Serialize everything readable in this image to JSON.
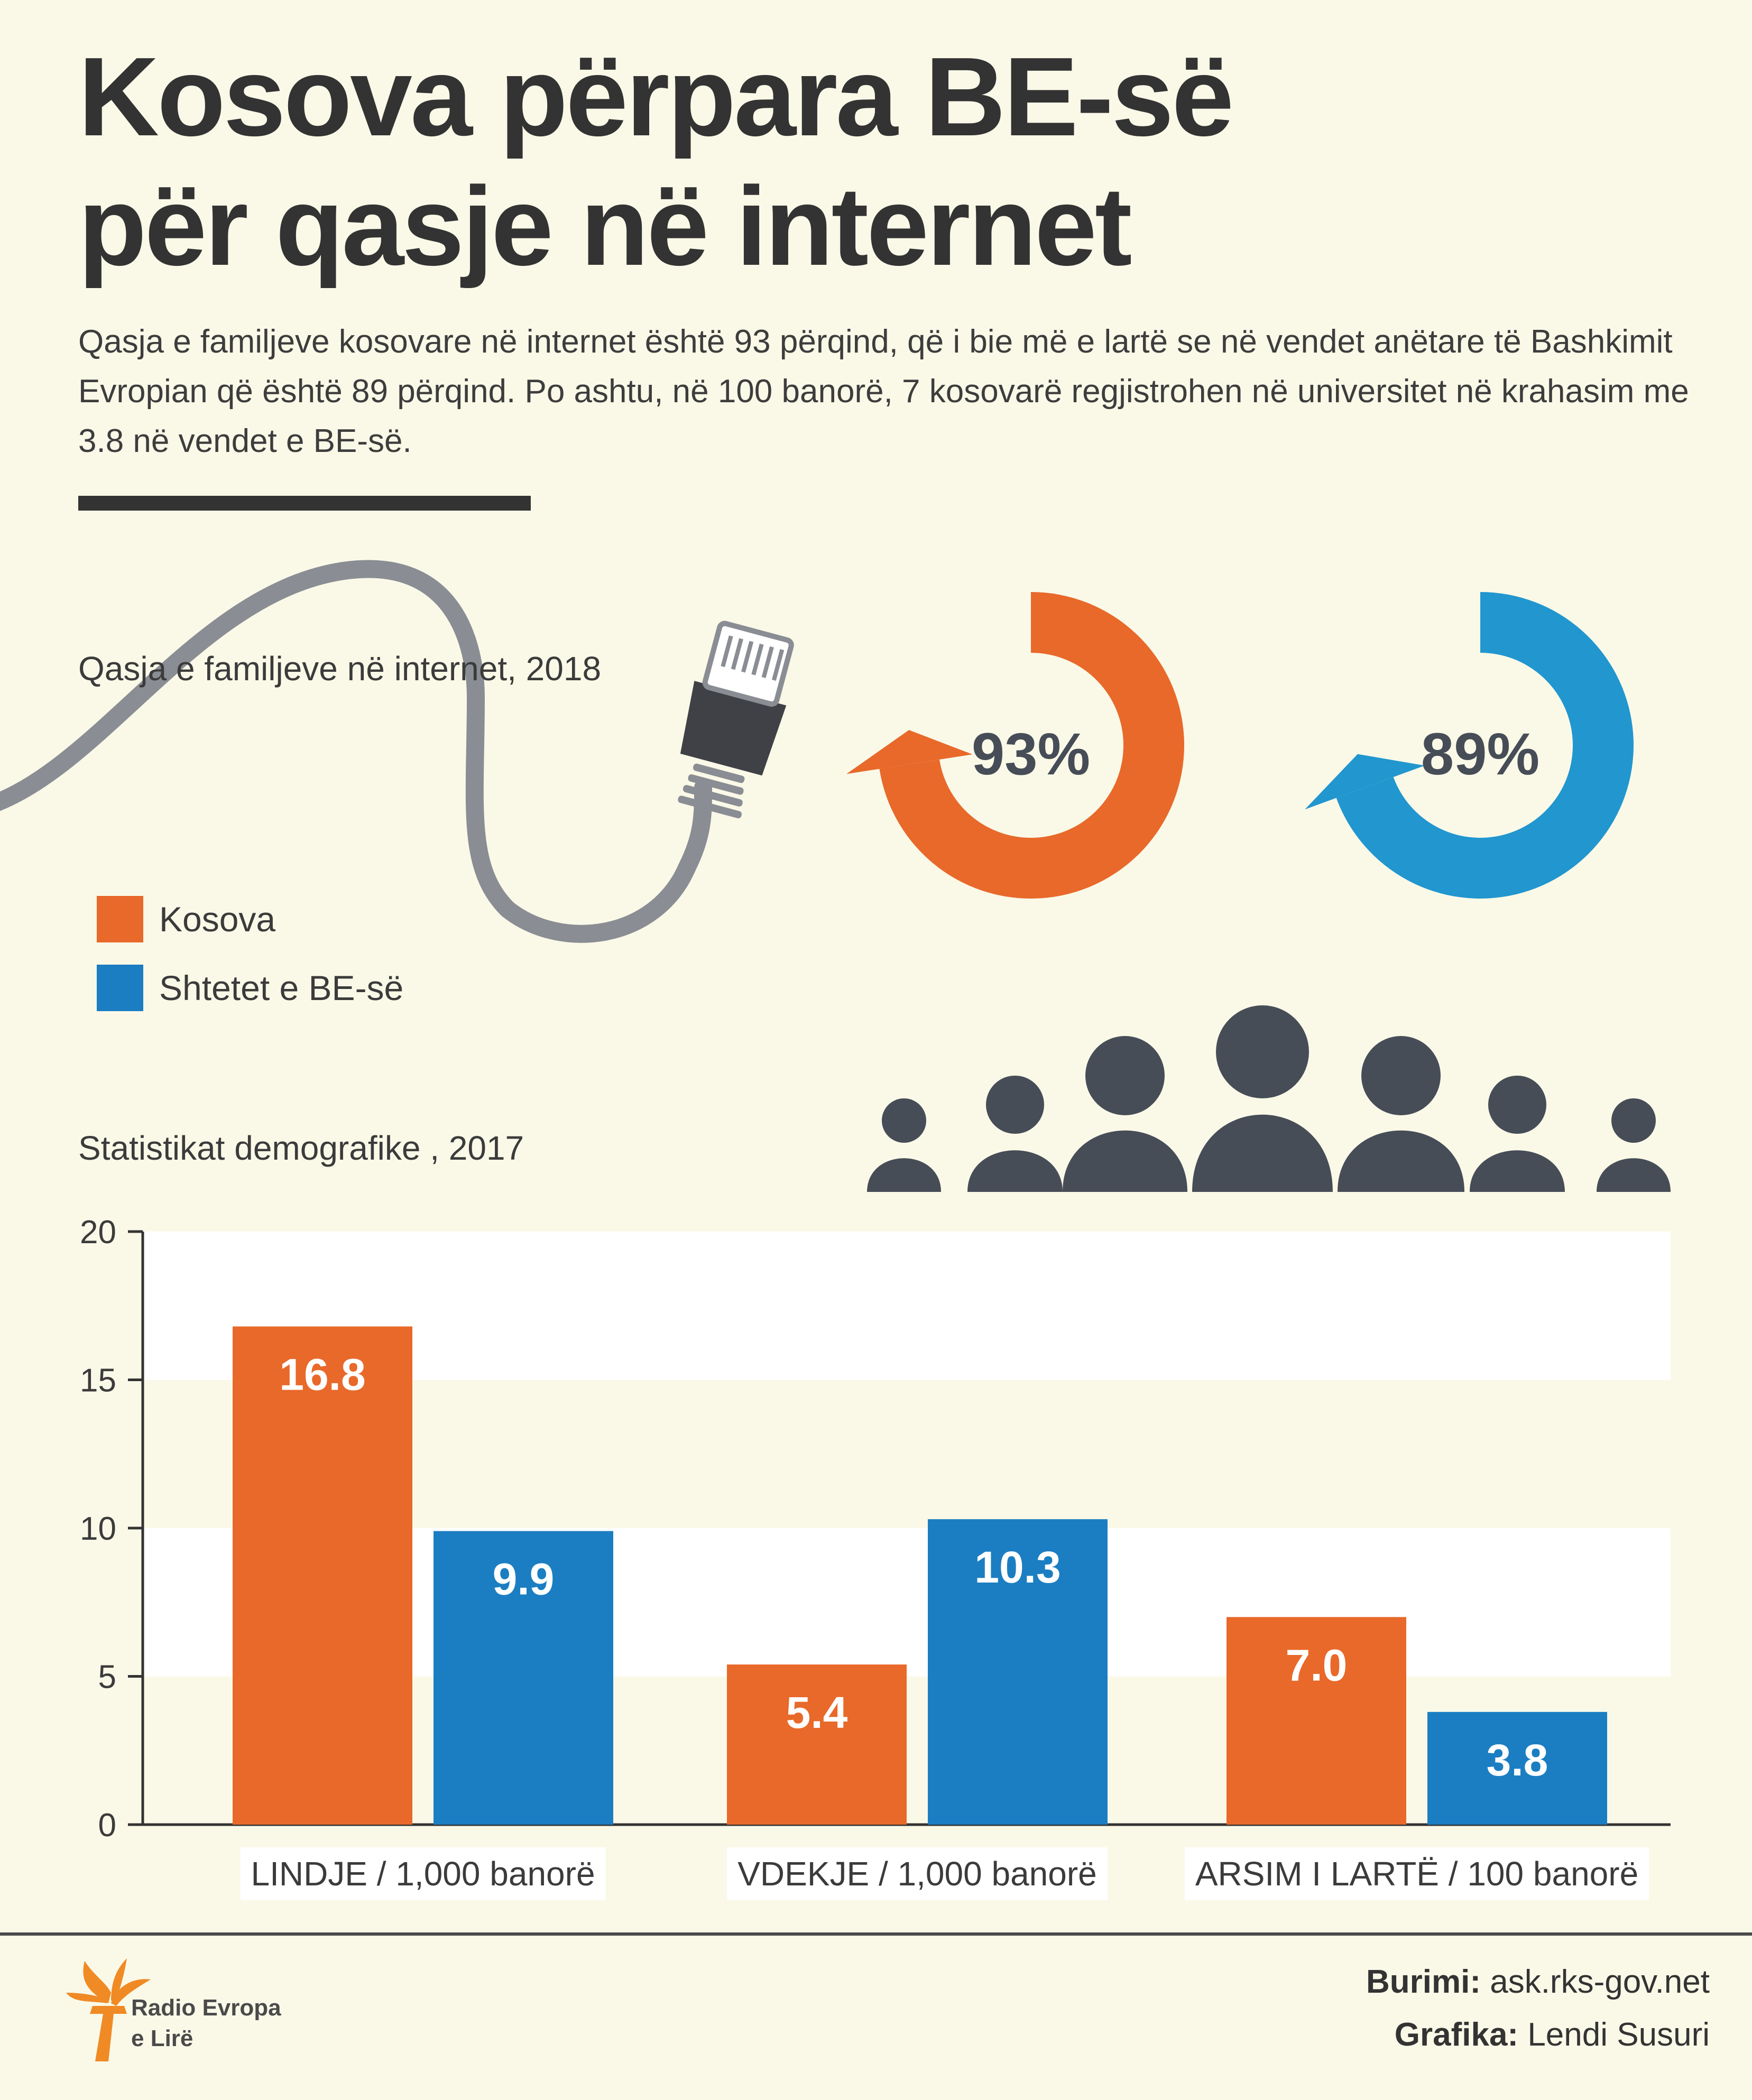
{
  "header": {
    "title_line1": "Kosova përpara BE-së",
    "title_line2": "për qasje në internet",
    "intro": "Qasja e familjeve kosovare në internet është 93 përqind, që i bie më e lartë se në vendet anëtare të Bashkimit Evropian që është 89 përqind. Po ashtu, në 100 banorë, 7 kosovarë regjistrohen në universitet në krahasim me 3.8 në vendet e BE-së."
  },
  "internet_section": {
    "label": "Qasja e familjeve në internet, 2018",
    "kosova_value": 93,
    "kosova_text": "93%",
    "eu_value": 89,
    "eu_text": "89%"
  },
  "legend": {
    "kosova": "Kosova",
    "eu": "Shtetet e BE-së"
  },
  "colors": {
    "kosova": "#e8692a",
    "eu": "#2196cf",
    "eu_bar": "#1b7ec2",
    "dark": "#474d57",
    "cable": "#8a8d93"
  },
  "demo_section": {
    "label": "Statistikat demografike , 2017"
  },
  "chart_data": {
    "type": "bar",
    "categories": [
      "LINDJE / 1,000 banorë",
      "VDEKJE / 1,000 banorë",
      "ARSIM I LARTË / 100 banorë"
    ],
    "series": [
      {
        "name": "Kosova",
        "values": [
          16.8,
          5.4,
          7.0
        ],
        "labels": [
          "16.8",
          "5.4",
          "7.0"
        ]
      },
      {
        "name": "Shtetet e BE-së",
        "values": [
          9.9,
          10.3,
          3.8
        ],
        "labels": [
          "9.9",
          "10.3",
          "3.8"
        ]
      }
    ],
    "ylim": [
      0,
      20
    ],
    "yticks": [
      "0",
      "5",
      "10",
      "15",
      "20"
    ],
    "grid": "alternating bands"
  },
  "footer": {
    "logo_line1": "Radio Evropa",
    "logo_line2": "e Lirë",
    "source_label": "Burimi:",
    "source_value": "ask.rks-gov.net",
    "graphic_label": "Grafika:",
    "graphic_value": "Lendi Susuri"
  }
}
